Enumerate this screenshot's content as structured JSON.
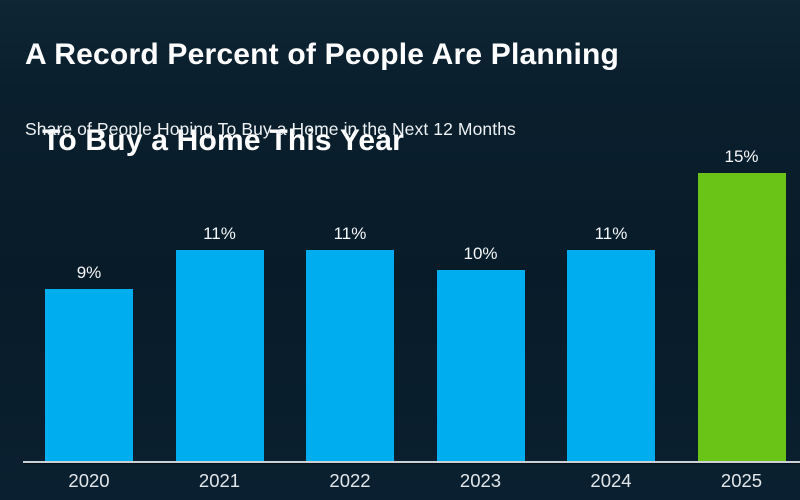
{
  "header": {
    "title_line1": "A Record Percent of People Are Planning",
    "title_line2": "To Buy a Home This Year",
    "subtitle": "Share of People Hoping To Buy a Home in the Next 12 Months"
  },
  "chart_data": {
    "type": "bar",
    "title": "A Record Percent of People Are Planning To Buy a Home This Year",
    "subtitle": "Share of People Hoping To Buy a Home in the Next 12 Months",
    "categories": [
      "2020",
      "2021",
      "2022",
      "2023",
      "2024",
      "2025"
    ],
    "values": [
      9,
      11,
      11,
      10,
      11,
      15
    ],
    "value_labels": [
      "9%",
      "11%",
      "11%",
      "10%",
      "11%",
      "15%"
    ],
    "bar_colors": [
      "#00ADEE",
      "#00ADEE",
      "#00ADEE",
      "#00ADEE",
      "#00ADEE",
      "#69C417"
    ],
    "xlabel": "",
    "ylabel": "",
    "ylim": [
      0,
      15.5
    ],
    "grid": false,
    "legend": false,
    "data_labels": "outside-top",
    "highlight_index": 5
  },
  "colors": {
    "background": "#081B29",
    "bar_blue": "#00ADEE",
    "bar_green": "#69C417",
    "axis_line": "#CBD0D4",
    "footer_strip": "#1778C1",
    "title_text": "#FFFFFF",
    "label_text": "#F5F7F8"
  }
}
